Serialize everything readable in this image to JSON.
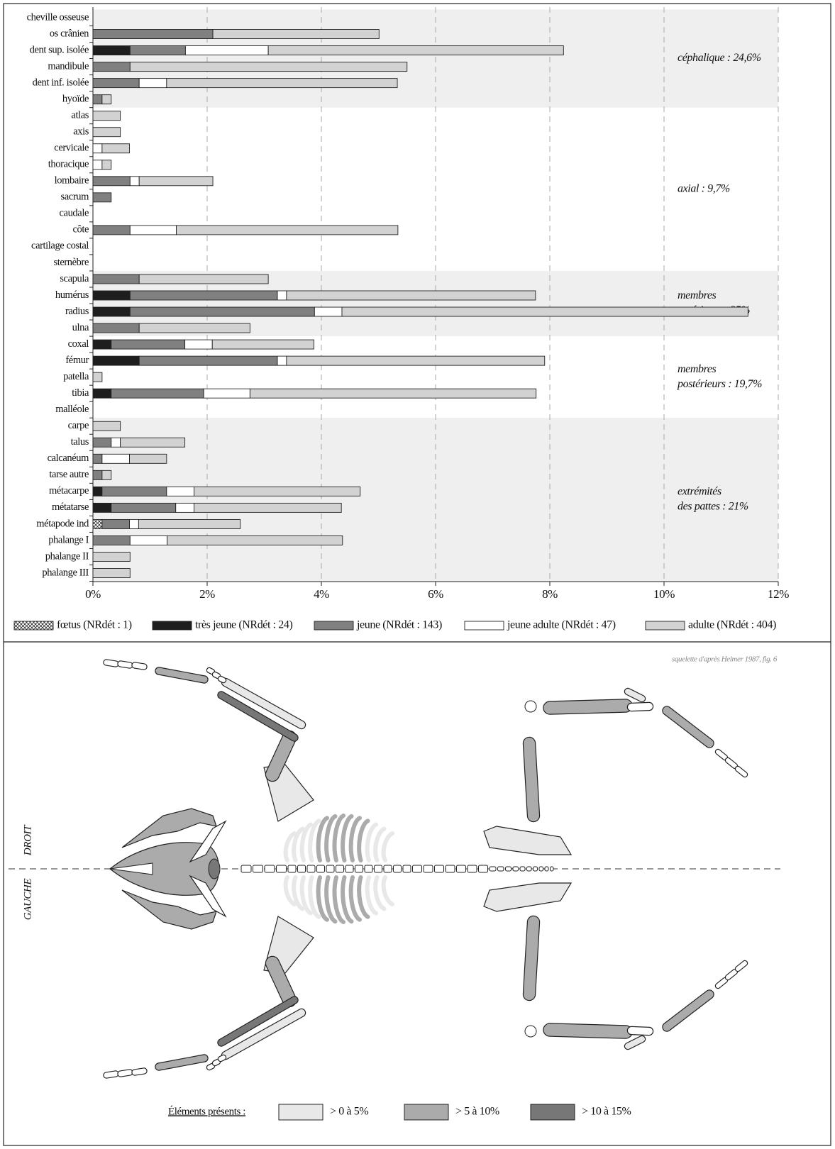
{
  "chart_data": {
    "type": "stacked-bar-horizontal",
    "categories": [
      "cheville osseuse",
      "os crânien",
      "dent sup. isolée",
      "mandibule",
      "dent inf. isolée",
      "hyoïde",
      "atlas",
      "axis",
      "cervicale",
      "thoracique",
      "lombaire",
      "sacrum",
      "caudale",
      "côte",
      "cartilage costal",
      "sternèbre",
      "scapula",
      "humérus",
      "radius",
      "ulna",
      "coxal",
      "fémur",
      "patella",
      "tibia",
      "malléole",
      "carpe",
      "talus",
      "calcanéum",
      "tarse autre",
      "métacarpe",
      "métatarse",
      "métapode ind",
      "phalange I",
      "phalange II",
      "phalange III"
    ],
    "series": [
      {
        "name": "fœtus (NRdét : 1)",
        "color": "#ffffff",
        "pattern": "crosshatch",
        "values": [
          null,
          null,
          null,
          null,
          null,
          null,
          null,
          null,
          null,
          null,
          null,
          null,
          null,
          null,
          null,
          null,
          null,
          null,
          null,
          null,
          null,
          null,
          null,
          null,
          null,
          null,
          null,
          null,
          null,
          null,
          null,
          0.16,
          null,
          null,
          null
        ]
      },
      {
        "name": "très jeune (NRdét : 24)",
        "color": "#1e1e1e",
        "values": [
          null,
          null,
          0.65,
          null,
          null,
          null,
          null,
          null,
          null,
          null,
          null,
          null,
          null,
          null,
          null,
          null,
          null,
          0.65,
          0.65,
          null,
          0.32,
          0.81,
          null,
          0.32,
          null,
          null,
          null,
          null,
          null,
          0.16,
          0.32,
          null,
          null,
          null,
          null
        ]
      },
      {
        "name": "jeune (NRdét : 143)",
        "color": "#808080",
        "values": [
          null,
          2.1,
          0.97,
          0.65,
          0.81,
          0.16,
          null,
          null,
          null,
          null,
          0.65,
          0.32,
          null,
          0.65,
          null,
          null,
          0.81,
          2.58,
          3.23,
          0.81,
          1.29,
          2.42,
          null,
          1.62,
          null,
          null,
          0.32,
          0.16,
          0.16,
          1.13,
          1.13,
          0.48,
          0.65,
          null,
          null
        ]
      },
      {
        "name": "jeune adulte (NRdét : 47)",
        "color": "#ffffff",
        "values": [
          null,
          null,
          1.45,
          null,
          0.48,
          null,
          null,
          null,
          0.16,
          0.16,
          0.16,
          null,
          null,
          0.81,
          null,
          null,
          null,
          0.16,
          0.48,
          null,
          0.48,
          0.16,
          null,
          0.81,
          null,
          null,
          0.16,
          0.48,
          null,
          0.48,
          0.32,
          0.16,
          0.65,
          null,
          null
        ]
      },
      {
        "name": "adulte (NRdét : 404)",
        "color": "#d2d2d2",
        "values": [
          null,
          2.91,
          5.17,
          4.85,
          4.04,
          0.16,
          0.48,
          0.48,
          0.48,
          0.16,
          1.29,
          null,
          null,
          3.88,
          null,
          null,
          2.26,
          4.36,
          7.11,
          1.94,
          1.78,
          4.52,
          0.16,
          5.01,
          null,
          0.48,
          1.13,
          0.65,
          0.16,
          2.91,
          2.58,
          1.78,
          3.07,
          0.65,
          0.65
        ]
      }
    ],
    "groups": [
      {
        "label": [
          "céphalique : 24,6%"
        ],
        "rows": 6,
        "shaded": true
      },
      {
        "label": [
          "axial : 9,7%"
        ],
        "rows": 10,
        "shaded": false
      },
      {
        "label": [
          "membres",
          "antérieurs : 25%"
        ],
        "rows": 4,
        "shaded": true
      },
      {
        "label": [
          "membres",
          "postérieurs : 19,7%"
        ],
        "rows": 5,
        "shaded": false
      },
      {
        "label": [
          "extrémités",
          "des pattes : 21%"
        ],
        "rows": 10,
        "shaded": true
      }
    ],
    "xlim": [
      0,
      12
    ],
    "xticks": [
      {
        "value": 0,
        "label": "0%"
      },
      {
        "value": 2,
        "label": "2%"
      },
      {
        "value": 4,
        "label": "4%"
      },
      {
        "value": 6,
        "label": "6%"
      },
      {
        "value": 8,
        "label": "8%"
      },
      {
        "value": 10,
        "label": "10%"
      },
      {
        "value": 12,
        "label": "12%"
      }
    ],
    "grid": true
  },
  "skeleton": {
    "credit": "squelette d'après Helmer 1987, fig. 6",
    "right_label": "DROIT",
    "left_label": "GAUCHE",
    "legend": {
      "title": "Éléments présents :",
      "items": [
        {
          "label": "> 0  à 5%",
          "color": "#e8e8e8"
        },
        {
          "label": "> 5 à 10%",
          "color": "#ababab"
        },
        {
          "label": "> 10 à 15%",
          "color": "#777777"
        }
      ]
    }
  }
}
